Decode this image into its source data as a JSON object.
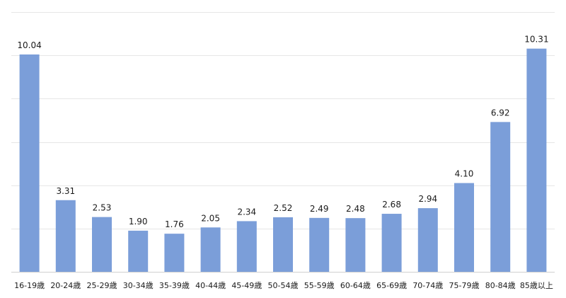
{
  "chart_data": {
    "type": "bar",
    "categories": [
      "16-19歳",
      "20-24歳",
      "25-29歳",
      "30-34歳",
      "35-39歳",
      "40-44歳",
      "45-49歳",
      "50-54歳",
      "55-59歳",
      "60-64歳",
      "65-69歳",
      "70-74歳",
      "75-79歳",
      "80-84歳",
      "85歳以上"
    ],
    "values": [
      10.04,
      3.31,
      2.53,
      1.9,
      1.76,
      2.05,
      2.34,
      2.52,
      2.49,
      2.48,
      2.68,
      2.94,
      4.1,
      6.92,
      10.31
    ],
    "value_labels": [
      "10.04",
      "3.31",
      "2.53",
      "1.90",
      "1.76",
      "2.05",
      "2.34",
      "2.52",
      "2.49",
      "2.48",
      "2.68",
      "2.94",
      "4.10",
      "6.92",
      "10.31"
    ],
    "ylim": [
      0,
      12
    ],
    "grid": true,
    "legend": "none",
    "bar_color": "#7b9ed9",
    "grid_color": "#e6e6e6"
  }
}
